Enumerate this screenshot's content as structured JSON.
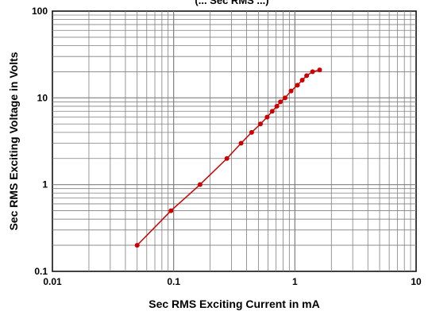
{
  "chart_data": {
    "type": "line",
    "title": "(... Sec RMS ...)",
    "xlabel": "Sec RMS Exciting Current in mA",
    "ylabel": "Sec RMS Exciting Voltage in Volts",
    "x_scale": "log",
    "y_scale": "log",
    "xlim": [
      0.01,
      10
    ],
    "ylim": [
      0.1,
      100
    ],
    "x_ticks": [
      "0.01",
      "0.1",
      "1",
      "10"
    ],
    "y_ticks": [
      "0.1",
      "1",
      "10",
      "100"
    ],
    "grid": true,
    "legend": "none",
    "series": [
      {
        "color": "#cc0000",
        "x": [
          0.05,
          0.095,
          0.165,
          0.275,
          0.36,
          0.44,
          0.52,
          0.59,
          0.65,
          0.71,
          0.76,
          0.83,
          0.93,
          1.05,
          1.15,
          1.25,
          1.4,
          1.6
        ],
        "y": [
          0.2,
          0.5,
          1.0,
          2.0,
          3.0,
          4.0,
          5.0,
          6.0,
          7.0,
          8.0,
          9.0,
          10.0,
          12.0,
          14.0,
          16.0,
          18.0,
          20.0,
          21.0
        ]
      }
    ]
  }
}
